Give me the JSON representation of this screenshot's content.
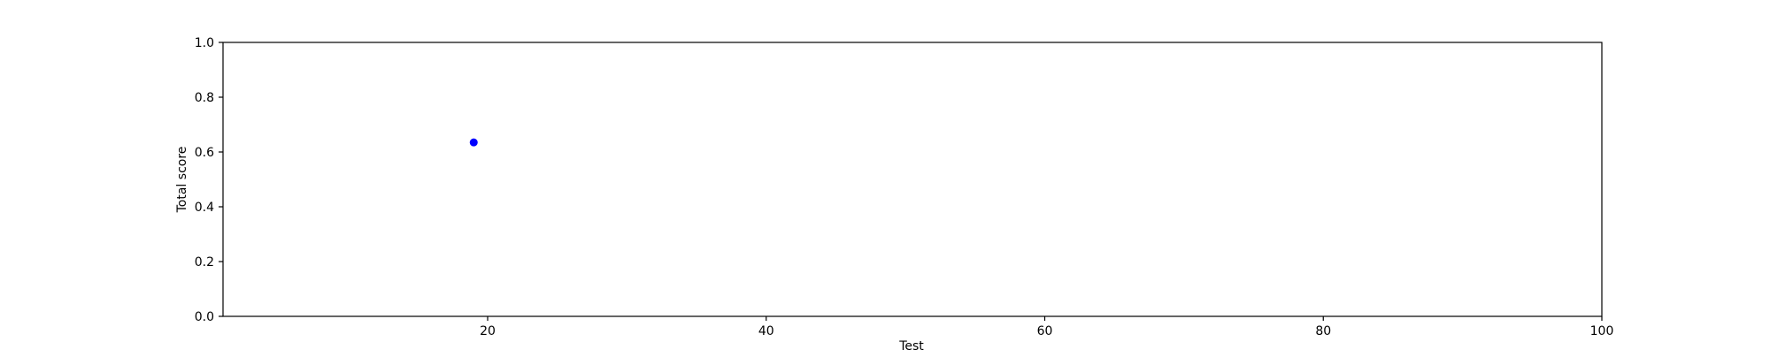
{
  "chart_data": {
    "type": "scatter",
    "title": "",
    "xlabel": "Test",
    "ylabel": "Total score",
    "xlim": [
      1,
      100
    ],
    "ylim": [
      0.0,
      1.0
    ],
    "x_ticks": [
      20,
      40,
      60,
      80,
      100
    ],
    "y_ticks": [
      0.0,
      0.2,
      0.4,
      0.6,
      0.8,
      1.0
    ],
    "x_tick_labels": [
      "20",
      "40",
      "60",
      "80",
      "100"
    ],
    "y_tick_labels": [
      "0.0",
      "0.2",
      "0.4",
      "0.6",
      "0.8",
      "1.0"
    ],
    "grid": false,
    "legend": "none",
    "series": [
      {
        "color": "#0000ff",
        "points": [
          {
            "x": 19,
            "y": 0.635
          }
        ]
      }
    ]
  }
}
